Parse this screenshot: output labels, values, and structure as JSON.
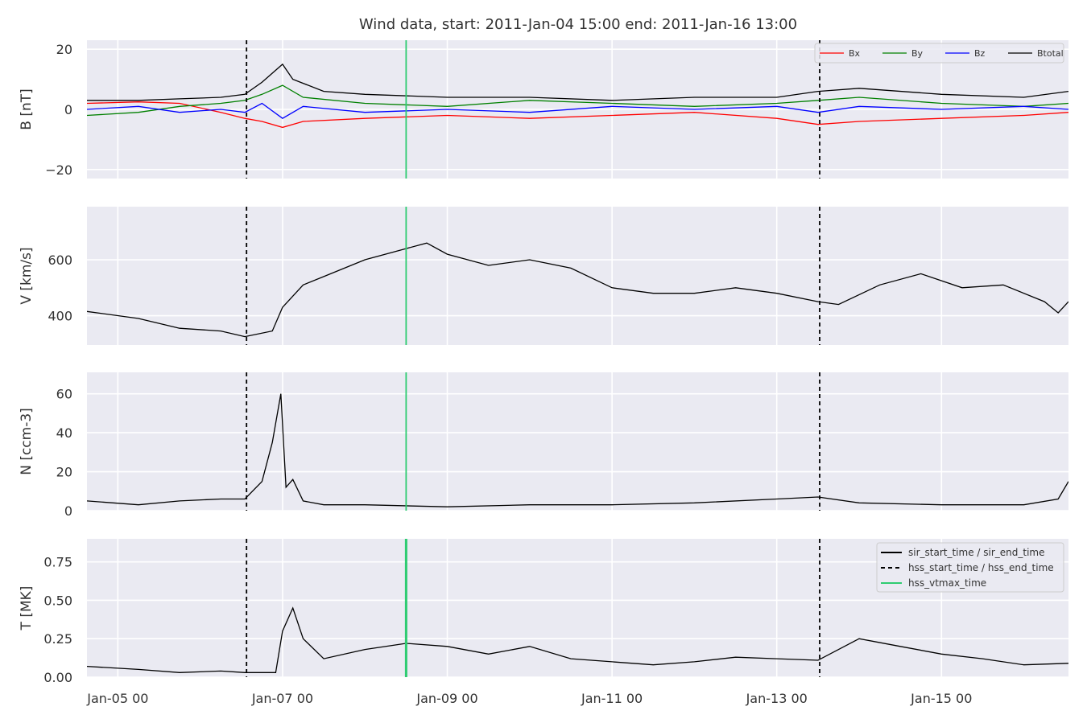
{
  "figure": {
    "title": "Wind data, start: 2011-Jan-04 15:00  end: 2011-Jan-16 13:00",
    "x_tick_labels": [
      "Jan-05 00",
      "Jan-07 00",
      "Jan-09 00",
      "Jan-11 00",
      "Jan-13 00",
      "Jan-15 00"
    ]
  },
  "colors": {
    "panel_bg": "#eaeaf2",
    "grid": "#ffffff",
    "bx": "#ff0000",
    "by": "#008000",
    "bz": "#0000ff",
    "btotal": "#000000",
    "vtmax": "#2ecc71"
  },
  "chart_data": {
    "type": "line",
    "x_unit": "days since 2011-Jan-04 00:00",
    "xlim": [
      "2011-01-04 15:00",
      "2011-01-16 13:00"
    ],
    "x_ticks": [
      "2011-01-05 00:00",
      "2011-01-07 00:00",
      "2011-01-09 00:00",
      "2011-01-11 00:00",
      "2011-01-13 00:00",
      "2011-01-15 00:00"
    ],
    "event_lines": [
      {
        "time": "2011-01-06 13:30",
        "style": "dashed",
        "color": "#000000",
        "legend": "hss_start_time / hss_end_time"
      },
      {
        "time": "2011-01-08 12:00",
        "style": "solid",
        "color": "#2ecc71",
        "legend": "hss_vtmax_time"
      },
      {
        "time": "2011-01-13 12:30",
        "style": "dashed",
        "color": "#000000",
        "legend": "hss_start_time / hss_end_time"
      }
    ],
    "event_legend": [
      "sir_start_time / sir_end_time",
      "hss_start_time / hss_end_time",
      "hss_vtmax_time"
    ],
    "panels": [
      {
        "ylabel": "B [nT]",
        "ylim": [
          -23,
          23
        ],
        "yticks": [
          20,
          0,
          -20
        ],
        "ytick_labels": [
          "20",
          "0",
          "−20"
        ],
        "legend": [
          "Bx",
          "By",
          "Bz",
          "Btotal"
        ],
        "series": [
          {
            "name": "Bx",
            "color": "#ff0000",
            "points": [
              [
                "2011-01-04 15:00",
                2
              ],
              [
                "2011-01-05 06:00",
                2.5
              ],
              [
                "2011-01-05 18:00",
                2
              ],
              [
                "2011-01-06 06:00",
                -1
              ],
              [
                "2011-01-06 13:00",
                -3
              ],
              [
                "2011-01-06 18:00",
                -4
              ],
              [
                "2011-01-07 00:00",
                -6
              ],
              [
                "2011-01-07 06:00",
                -4
              ],
              [
                "2011-01-08 00:00",
                -3
              ],
              [
                "2011-01-09 00:00",
                -2
              ],
              [
                "2011-01-10 00:00",
                -3
              ],
              [
                "2011-01-11 00:00",
                -2
              ],
              [
                "2011-01-12 00:00",
                -1
              ],
              [
                "2011-01-13 00:00",
                -3
              ],
              [
                "2011-01-13 12:00",
                -5
              ],
              [
                "2011-01-14 00:00",
                -4
              ],
              [
                "2011-01-15 00:00",
                -3
              ],
              [
                "2011-01-16 00:00",
                -2
              ],
              [
                "2011-01-16 13:00",
                -1
              ]
            ]
          },
          {
            "name": "By",
            "color": "#008000",
            "points": [
              [
                "2011-01-04 15:00",
                -2
              ],
              [
                "2011-01-05 06:00",
                -1
              ],
              [
                "2011-01-05 18:00",
                1
              ],
              [
                "2011-01-06 06:00",
                2
              ],
              [
                "2011-01-06 13:00",
                3
              ],
              [
                "2011-01-06 18:00",
                5
              ],
              [
                "2011-01-07 00:00",
                8
              ],
              [
                "2011-01-07 06:00",
                4
              ],
              [
                "2011-01-08 00:00",
                2
              ],
              [
                "2011-01-09 00:00",
                1
              ],
              [
                "2011-01-10 00:00",
                3
              ],
              [
                "2011-01-11 00:00",
                2
              ],
              [
                "2011-01-12 00:00",
                1
              ],
              [
                "2011-01-13 00:00",
                2
              ],
              [
                "2011-01-13 12:00",
                3
              ],
              [
                "2011-01-14 00:00",
                4
              ],
              [
                "2011-01-15 00:00",
                2
              ],
              [
                "2011-01-16 00:00",
                1
              ],
              [
                "2011-01-16 13:00",
                2
              ]
            ]
          },
          {
            "name": "Bz",
            "color": "#0000ff",
            "points": [
              [
                "2011-01-04 15:00",
                0
              ],
              [
                "2011-01-05 06:00",
                1
              ],
              [
                "2011-01-05 18:00",
                -1
              ],
              [
                "2011-01-06 06:00",
                0
              ],
              [
                "2011-01-06 13:00",
                -1
              ],
              [
                "2011-01-06 18:00",
                2
              ],
              [
                "2011-01-07 00:00",
                -3
              ],
              [
                "2011-01-07 06:00",
                1
              ],
              [
                "2011-01-08 00:00",
                -1
              ],
              [
                "2011-01-09 00:00",
                0
              ],
              [
                "2011-01-10 00:00",
                -1
              ],
              [
                "2011-01-11 00:00",
                1
              ],
              [
                "2011-01-12 00:00",
                0
              ],
              [
                "2011-01-13 00:00",
                1
              ],
              [
                "2011-01-13 12:00",
                -1
              ],
              [
                "2011-01-14 00:00",
                1
              ],
              [
                "2011-01-15 00:00",
                0
              ],
              [
                "2011-01-16 00:00",
                1
              ],
              [
                "2011-01-16 13:00",
                0
              ]
            ]
          },
          {
            "name": "Btotal",
            "color": "#000000",
            "points": [
              [
                "2011-01-04 15:00",
                3
              ],
              [
                "2011-01-05 06:00",
                3
              ],
              [
                "2011-01-05 18:00",
                3.5
              ],
              [
                "2011-01-06 06:00",
                4
              ],
              [
                "2011-01-06 13:00",
                5
              ],
              [
                "2011-01-06 18:00",
                9
              ],
              [
                "2011-01-07 00:00",
                15
              ],
              [
                "2011-01-07 03:00",
                10
              ],
              [
                "2011-01-07 12:00",
                6
              ],
              [
                "2011-01-08 00:00",
                5
              ],
              [
                "2011-01-09 00:00",
                4
              ],
              [
                "2011-01-10 00:00",
                4
              ],
              [
                "2011-01-11 00:00",
                3
              ],
              [
                "2011-01-12 00:00",
                4
              ],
              [
                "2011-01-13 00:00",
                4
              ],
              [
                "2011-01-13 12:00",
                6
              ],
              [
                "2011-01-14 00:00",
                7
              ],
              [
                "2011-01-15 00:00",
                5
              ],
              [
                "2011-01-16 00:00",
                4
              ],
              [
                "2011-01-16 13:00",
                6
              ]
            ]
          }
        ]
      },
      {
        "ylabel": "V [km/s]",
        "ylim": [
          295,
          790
        ],
        "yticks": [
          600,
          400
        ],
        "ytick_labels": [
          "600",
          "400"
        ],
        "series": [
          {
            "name": "",
            "color": "#000000",
            "points": [
              [
                "2011-01-04 15:00",
                415
              ],
              [
                "2011-01-05 06:00",
                390
              ],
              [
                "2011-01-05 18:00",
                355
              ],
              [
                "2011-01-06 06:00",
                345
              ],
              [
                "2011-01-06 13:00",
                325
              ],
              [
                "2011-01-06 21:00",
                345
              ],
              [
                "2011-01-07 00:00",
                430
              ],
              [
                "2011-01-07 06:00",
                510
              ],
              [
                "2011-01-07 12:00",
                540
              ],
              [
                "2011-01-08 00:00",
                600
              ],
              [
                "2011-01-08 12:00",
                640
              ],
              [
                "2011-01-08 18:00",
                660
              ],
              [
                "2011-01-09 00:00",
                620
              ],
              [
                "2011-01-09 12:00",
                580
              ],
              [
                "2011-01-10 00:00",
                600
              ],
              [
                "2011-01-10 12:00",
                570
              ],
              [
                "2011-01-11 00:00",
                500
              ],
              [
                "2011-01-11 12:00",
                480
              ],
              [
                "2011-01-12 00:00",
                480
              ],
              [
                "2011-01-12 12:00",
                500
              ],
              [
                "2011-01-13 00:00",
                480
              ],
              [
                "2011-01-13 12:00",
                450
              ],
              [
                "2011-01-13 18:00",
                440
              ],
              [
                "2011-01-14 06:00",
                510
              ],
              [
                "2011-01-14 18:00",
                550
              ],
              [
                "2011-01-15 06:00",
                500
              ],
              [
                "2011-01-15 18:00",
                510
              ],
              [
                "2011-01-16 06:00",
                450
              ],
              [
                "2011-01-16 10:00",
                410
              ],
              [
                "2011-01-16 13:00",
                450
              ]
            ]
          }
        ]
      },
      {
        "ylabel": "N [ccm-3]",
        "ylim": [
          0,
          71
        ],
        "yticks": [
          60,
          40,
          20,
          0
        ],
        "ytick_labels": [
          "60",
          "40",
          "20",
          "0"
        ],
        "series": [
          {
            "name": "",
            "color": "#000000",
            "points": [
              [
                "2011-01-04 15:00",
                5
              ],
              [
                "2011-01-05 06:00",
                3
              ],
              [
                "2011-01-05 18:00",
                5
              ],
              [
                "2011-01-06 06:00",
                6
              ],
              [
                "2011-01-06 13:00",
                6
              ],
              [
                "2011-01-06 18:00",
                15
              ],
              [
                "2011-01-06 21:00",
                35
              ],
              [
                "2011-01-06 23:30",
                60
              ],
              [
                "2011-01-07 01:00",
                12
              ],
              [
                "2011-01-07 03:00",
                16
              ],
              [
                "2011-01-07 06:00",
                5
              ],
              [
                "2011-01-07 12:00",
                3
              ],
              [
                "2011-01-08 00:00",
                3
              ],
              [
                "2011-01-09 00:00",
                2
              ],
              [
                "2011-01-10 00:00",
                3
              ],
              [
                "2011-01-11 00:00",
                3
              ],
              [
                "2011-01-12 00:00",
                4
              ],
              [
                "2011-01-13 00:00",
                6
              ],
              [
                "2011-01-13 12:00",
                7
              ],
              [
                "2011-01-14 00:00",
                4
              ],
              [
                "2011-01-15 00:00",
                3
              ],
              [
                "2011-01-16 00:00",
                3
              ],
              [
                "2011-01-16 10:00",
                6
              ],
              [
                "2011-01-16 13:00",
                15
              ]
            ]
          }
        ]
      },
      {
        "ylabel": "T [MK]",
        "ylim": [
          0,
          0.9
        ],
        "yticks": [
          0.75,
          0.5,
          0.25,
          0.0
        ],
        "ytick_labels": [
          "0.75",
          "0.50",
          "0.25",
          "0.00"
        ],
        "series": [
          {
            "name": "",
            "color": "#000000",
            "points": [
              [
                "2011-01-04 15:00",
                0.07
              ],
              [
                "2011-01-05 06:00",
                0.05
              ],
              [
                "2011-01-05 18:00",
                0.03
              ],
              [
                "2011-01-06 06:00",
                0.04
              ],
              [
                "2011-01-06 13:00",
                0.03
              ],
              [
                "2011-01-06 22:00",
                0.03
              ],
              [
                "2011-01-07 00:00",
                0.3
              ],
              [
                "2011-01-07 03:00",
                0.45
              ],
              [
                "2011-01-07 06:00",
                0.25
              ],
              [
                "2011-01-07 12:00",
                0.12
              ],
              [
                "2011-01-08 00:00",
                0.18
              ],
              [
                "2011-01-08 12:00",
                0.22
              ],
              [
                "2011-01-09 00:00",
                0.2
              ],
              [
                "2011-01-09 12:00",
                0.15
              ],
              [
                "2011-01-10 00:00",
                0.2
              ],
              [
                "2011-01-10 12:00",
                0.12
              ],
              [
                "2011-01-11 00:00",
                0.1
              ],
              [
                "2011-01-11 12:00",
                0.08
              ],
              [
                "2011-01-12 00:00",
                0.1
              ],
              [
                "2011-01-12 12:00",
                0.13
              ],
              [
                "2011-01-13 00:00",
                0.12
              ],
              [
                "2011-01-13 12:00",
                0.11
              ],
              [
                "2011-01-14 00:00",
                0.25
              ],
              [
                "2011-01-14 12:00",
                0.2
              ],
              [
                "2011-01-15 00:00",
                0.15
              ],
              [
                "2011-01-15 12:00",
                0.12
              ],
              [
                "2011-01-16 00:00",
                0.08
              ],
              [
                "2011-01-16 13:00",
                0.09
              ]
            ]
          }
        ]
      }
    ]
  }
}
